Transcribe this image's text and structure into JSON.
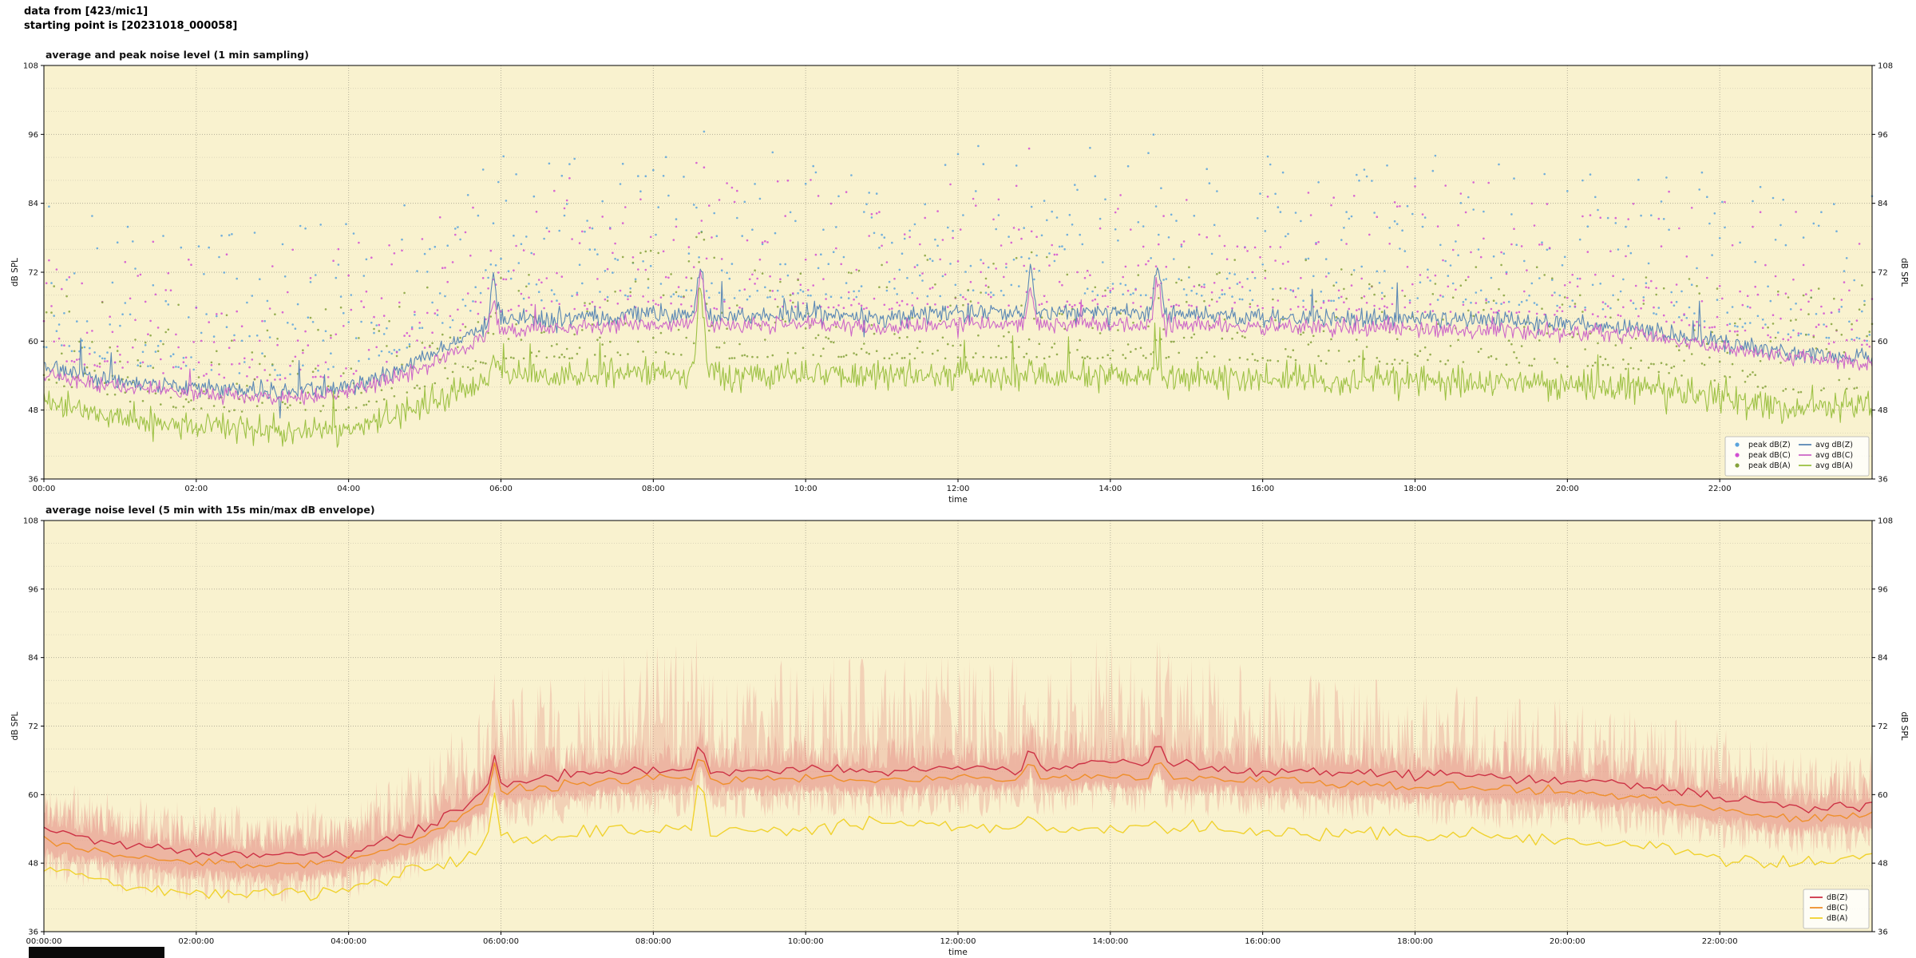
{
  "header": {
    "line1": "data from [423/mic1]",
    "line2": "starting point is [20231018_000058]"
  },
  "colors": {
    "plot_background": "#f9f2cf",
    "figure_background": "#ffffff",
    "grid_major": "#b5b09a",
    "grid_minor": "#d2ccb2",
    "axis": "#000000"
  },
  "chart_data": [
    {
      "type": "line+scatter",
      "title": "average and peak noise level (1 min sampling)",
      "xlabel": "time",
      "ylabel": "dB SPL",
      "ylabel_right": "dB SPL",
      "ylim": [
        36,
        108
      ],
      "yticks": [
        36,
        48,
        60,
        72,
        84,
        96,
        108
      ],
      "y_minor_step": 4,
      "x_hours": 24,
      "xticks": [
        "00:00",
        "02:00",
        "04:00",
        "06:00",
        "08:00",
        "10:00",
        "12:00",
        "14:00",
        "16:00",
        "18:00",
        "20:00",
        "22:00"
      ],
      "grid": true,
      "legend_position": "lower right",
      "legend_columns": 2,
      "legend": [
        {
          "label": "peak dB(Z)",
          "marker": "dot",
          "color": "#5aa3dc"
        },
        {
          "label": "peak dB(C)",
          "marker": "dot",
          "color": "#d24fd2"
        },
        {
          "label": "peak dB(A)",
          "marker": "dot",
          "color": "#85a23b"
        },
        {
          "label": "avg dB(Z)",
          "marker": "line",
          "color": "#5a87b5"
        },
        {
          "label": "avg dB(C)",
          "marker": "line",
          "color": "#cd68c8"
        },
        {
          "label": "avg dB(A)",
          "marker": "line",
          "color": "#9dc144"
        }
      ],
      "series": [
        {
          "name": "avg dB(Z)",
          "color": "#5a87b5",
          "sigma": 1.6,
          "spike_prob": 0.02,
          "spike_amp": 5,
          "hourly_dB": [
            56,
            53,
            52,
            51,
            52,
            57,
            64,
            64,
            65,
            64,
            65,
            64,
            65,
            65,
            65,
            65,
            64,
            64,
            64,
            63.5,
            63,
            62,
            60,
            58,
            57
          ]
        },
        {
          "name": "avg dB(C)",
          "color": "#cd68c8",
          "sigma": 1.4,
          "spike_prob": 0.015,
          "spike_amp": 4,
          "hourly_dB": [
            54,
            52,
            51,
            50,
            51,
            55.5,
            62,
            62.5,
            63,
            62.5,
            63,
            62.5,
            63,
            63,
            63,
            63,
            62.5,
            62.5,
            62,
            62,
            61.5,
            61,
            59,
            57,
            56
          ]
        },
        {
          "name": "avg dB(A)",
          "color": "#9dc144",
          "sigma": 2.4,
          "spike_prob": 0.03,
          "spike_amp": 5,
          "hourly_dB": [
            50,
            46.5,
            45,
            44.5,
            45,
            49,
            54,
            54,
            55,
            54,
            54.5,
            54,
            54,
            54,
            54,
            54,
            53.5,
            53,
            53,
            53,
            52.5,
            52,
            50,
            48,
            49
          ]
        }
      ],
      "scatter": [
        {
          "name": "peak dB(Z)",
          "color": "#5aa3dc",
          "base_series": 0,
          "offset": 3,
          "spread": 26,
          "sample_min": 2
        },
        {
          "name": "peak dB(C)",
          "color": "#d24fd2",
          "base_series": 1,
          "offset": 3,
          "spread": 23,
          "sample_min": 2
        },
        {
          "name": "peak dB(A)",
          "color": "#85a23b",
          "base_series": 2,
          "offset": 3,
          "spread": 18,
          "sample_min": 2
        }
      ],
      "events": [
        {
          "h": 5.9,
          "amp": [
            8,
            6,
            4
          ],
          "w": 0.05
        },
        {
          "h": 8.62,
          "amp": [
            8,
            9,
            15
          ],
          "w": 0.06
        },
        {
          "h": 12.95,
          "amp": [
            7,
            6,
            2
          ],
          "w": 0.05
        },
        {
          "h": 14.62,
          "amp": [
            8,
            7,
            2
          ],
          "w": 0.06
        }
      ],
      "sample_min": 1
    },
    {
      "type": "line+envelope",
      "title": "average noise level (5 min with 15s min/max dB envelope)",
      "xlabel": "time",
      "ylabel": "dB SPL",
      "ylabel_right": "dB SPL",
      "ylim": [
        36,
        108
      ],
      "yticks": [
        36,
        48,
        60,
        72,
        84,
        96,
        108
      ],
      "y_minor_step": 4,
      "x_hours": 24,
      "xticks": [
        "00:00:00",
        "02:00:00",
        "04:00:00",
        "06:00:00",
        "08:00:00",
        "10:00:00",
        "12:00:00",
        "14:00:00",
        "16:00:00",
        "18:00:00",
        "20:00:00",
        "22:00:00"
      ],
      "grid": true,
      "legend_position": "lower right",
      "legend_columns": 1,
      "legend": [
        {
          "label": "dB(Z)",
          "marker": "line",
          "color": "#cd3245"
        },
        {
          "label": "dB(C)",
          "marker": "line",
          "color": "#ef8f2b"
        },
        {
          "label": "dB(A)",
          "marker": "line",
          "color": "#f0d22e"
        }
      ],
      "series": [
        {
          "name": "dB(Z)",
          "color": "#cd3245",
          "sigma": 0.9,
          "hourly_dB": [
            54,
            51.5,
            50,
            49.5,
            50,
            54,
            62,
            63.5,
            64.5,
            64,
            64.5,
            64,
            64.5,
            64.5,
            65.5,
            65,
            64,
            64,
            63.5,
            63,
            62.5,
            61.5,
            59.5,
            57.5,
            58
          ]
        },
        {
          "name": "dB(C)",
          "color": "#ef8f2b",
          "sigma": 0.8,
          "hourly_dB": [
            52,
            49.5,
            48,
            47.5,
            48.5,
            52.5,
            60.5,
            62,
            63,
            62.5,
            63,
            62.5,
            63,
            63,
            63.5,
            63,
            62.5,
            62,
            61.5,
            61,
            60.5,
            59.5,
            57.5,
            55.5,
            56.5
          ]
        },
        {
          "name": "dB(A)",
          "color": "#f0d22e",
          "sigma": 1.3,
          "hourly_dB": [
            47,
            44,
            43,
            42.5,
            43.5,
            47,
            52,
            53,
            54,
            53.5,
            54,
            55,
            54.5,
            53.5,
            54,
            54.5,
            53.5,
            53,
            53,
            52.5,
            52,
            51,
            49,
            47.5,
            49
          ]
        }
      ],
      "envelope": {
        "color": "#e89a8e",
        "opacity": 0.38,
        "inner_opacity": 0.5,
        "max_amp_hourly": [
          9,
          8,
          8,
          8,
          9,
          13,
          16,
          18,
          22,
          20,
          20,
          19,
          20,
          20,
          22,
          20,
          18,
          16,
          16,
          15,
          14,
          13,
          12,
          10,
          10
        ],
        "min_drop": 6
      },
      "events": [
        {
          "h": 5.9,
          "amp": [
            6,
            6,
            9
          ],
          "w": 0.05
        },
        {
          "h": 8.62,
          "amp": [
            5,
            4,
            10
          ],
          "w": 0.07
        },
        {
          "h": 12.95,
          "amp": [
            3.5,
            3,
            3
          ],
          "w": 0.06
        },
        {
          "h": 14.62,
          "amp": [
            4.5,
            3.5,
            1.5
          ],
          "w": 0.07
        }
      ],
      "sample_min": 5
    }
  ]
}
